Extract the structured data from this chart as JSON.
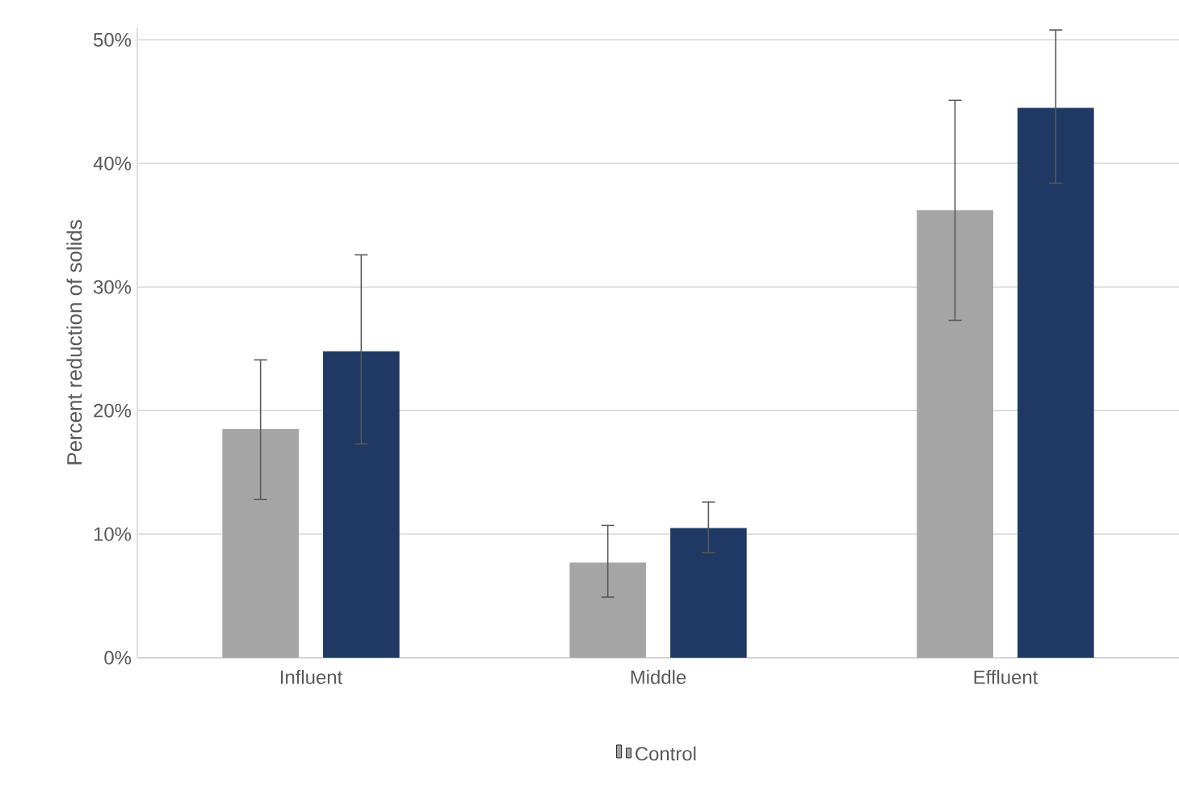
{
  "chart_data": {
    "type": "bar",
    "ylabel": "Percent reduction of solids",
    "categories": [
      "Influent",
      "Middle",
      "Effluent"
    ],
    "series": [
      {
        "name": "Control",
        "color": "#a5a5a5",
        "values": [
          18.5,
          7.7,
          36.2
        ],
        "errors": [
          [
            12.8,
            24.1
          ],
          [
            4.9,
            10.7
          ],
          [
            27.3,
            45.1
          ]
        ]
      },
      {
        "color": "#203864",
        "values": [
          24.8,
          10.5,
          44.5
        ],
        "errors": [
          [
            17.3,
            32.6
          ],
          [
            8.5,
            12.6
          ],
          [
            38.4,
            50.8
          ]
        ]
      }
    ],
    "ylim": [
      0,
      51
    ],
    "yticks": [
      {
        "value": 0,
        "label": "0%"
      },
      {
        "value": 10,
        "label": "10%"
      },
      {
        "value": 20,
        "label": "20%"
      },
      {
        "value": 30,
        "label": "30%"
      },
      {
        "value": 40,
        "label": "40%"
      },
      {
        "value": 50,
        "label": "50%"
      }
    ],
    "grid": "y",
    "legend": "bottom"
  }
}
